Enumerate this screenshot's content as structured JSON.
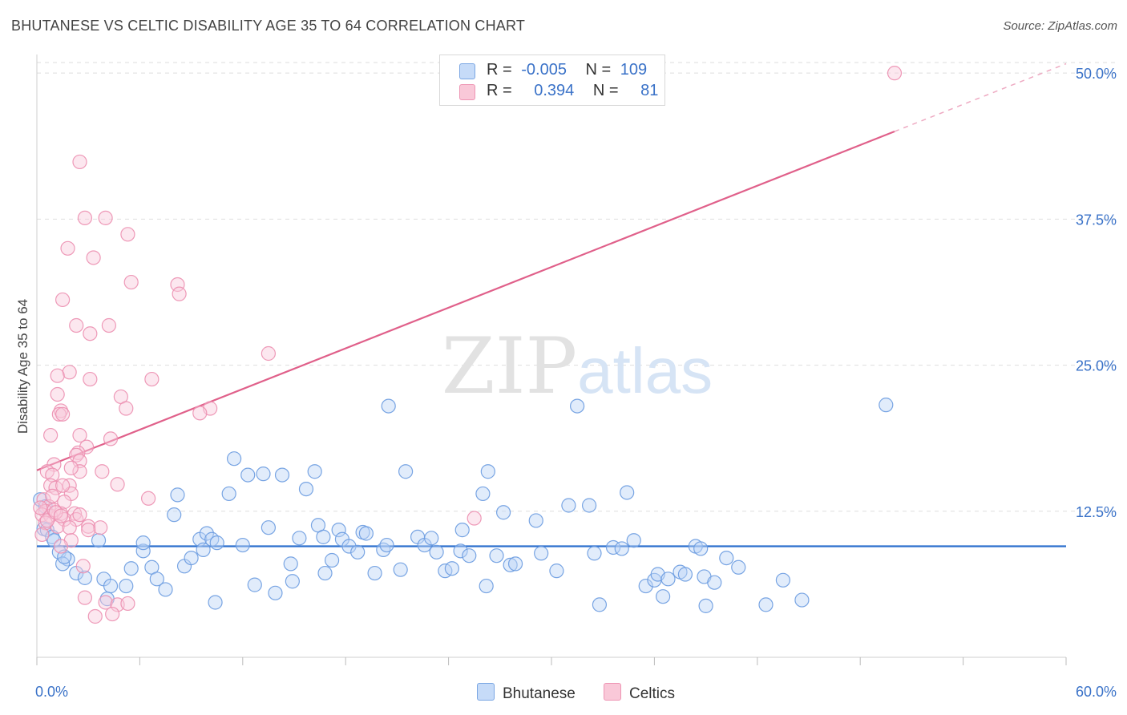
{
  "title": "BHUTANESE VS CELTIC DISABILITY AGE 35 TO 64 CORRELATION CHART",
  "source": "Source: ZipAtlas.com",
  "watermark": "ZIPatlas",
  "legend_top": [
    {
      "r_label": "R =",
      "r_value": "-0.005",
      "n_label": "N =",
      "n_value": "109",
      "color": "#aecbf4"
    },
    {
      "r_label": "R =",
      "r_value": "0.394",
      "n_label": "N =",
      "n_value": "81",
      "color": "#f7b9cf"
    }
  ],
  "legend_bottom": [
    {
      "label": "Bhutanese",
      "color": "#aecbf4"
    },
    {
      "label": "Celtics",
      "color": "#f7b9cf"
    }
  ],
  "colors": {
    "blue_point_stroke": "#6a9be0",
    "blue_point_fill": "#bcd4f6",
    "pink_point_stroke": "#ec8fb0",
    "pink_point_fill": "#f9cadb",
    "blue_line": "#2c6fce",
    "pink_line": "#e0608a",
    "grid": "#dedede",
    "axis_text": "#3a72c8"
  },
  "chart_data": {
    "type": "scatter",
    "title": "BHUTANESE VS CELTIC DISABILITY AGE 35 TO 64 CORRELATION CHART",
    "xlabel": "",
    "ylabel": "Disability Age 35 to 64",
    "xlim": [
      0,
      60
    ],
    "ylim": [
      0,
      52
    ],
    "x_tick_labels": [
      "0.0%",
      "60.0%"
    ],
    "y_ticks": [
      12.5,
      25.0,
      37.5,
      50.0
    ],
    "y_tick_labels": [
      "12.5%",
      "25.0%",
      "37.5%",
      "50.0%"
    ],
    "grid": true,
    "legend_position": "bottom",
    "series": [
      {
        "name": "Bhutanese",
        "points": [
          [
            0.2,
            13.5
          ],
          [
            0.4,
            11.0
          ],
          [
            0.6,
            10.9
          ],
          [
            0.9,
            10.3
          ],
          [
            1.3,
            9.0
          ],
          [
            1.8,
            8.4
          ],
          [
            1.5,
            8.0
          ],
          [
            2.3,
            7.2
          ],
          [
            2.8,
            6.8
          ],
          [
            3.6,
            10.0
          ],
          [
            3.9,
            6.7
          ],
          [
            4.3,
            6.1
          ],
          [
            5.2,
            6.1
          ],
          [
            5.5,
            7.6
          ],
          [
            4.1,
            5.0
          ],
          [
            6.2,
            9.1
          ],
          [
            6.2,
            9.8
          ],
          [
            6.7,
            7.7
          ],
          [
            7.0,
            6.7
          ],
          [
            7.5,
            5.8
          ],
          [
            8.2,
            13.9
          ],
          [
            8.0,
            12.2
          ],
          [
            8.6,
            7.8
          ],
          [
            9.0,
            8.5
          ],
          [
            9.5,
            10.1
          ],
          [
            9.7,
            9.2
          ],
          [
            9.9,
            10.6
          ],
          [
            10.2,
            10.1
          ],
          [
            10.5,
            9.8
          ],
          [
            10.4,
            4.7
          ],
          [
            11.2,
            14.0
          ],
          [
            11.5,
            17.0
          ],
          [
            12.0,
            9.6
          ],
          [
            12.3,
            15.6
          ],
          [
            12.7,
            6.2
          ],
          [
            13.2,
            15.7
          ],
          [
            13.5,
            11.1
          ],
          [
            13.9,
            5.5
          ],
          [
            14.3,
            15.6
          ],
          [
            14.8,
            8.0
          ],
          [
            14.9,
            6.5
          ],
          [
            15.3,
            10.2
          ],
          [
            15.7,
            14.4
          ],
          [
            16.2,
            15.9
          ],
          [
            16.4,
            11.3
          ],
          [
            16.7,
            10.3
          ],
          [
            16.8,
            7.2
          ],
          [
            17.2,
            8.3
          ],
          [
            17.6,
            10.9
          ],
          [
            17.8,
            10.1
          ],
          [
            18.2,
            9.5
          ],
          [
            18.7,
            9.0
          ],
          [
            19.0,
            10.7
          ],
          [
            19.2,
            10.6
          ],
          [
            19.7,
            7.2
          ],
          [
            20.2,
            9.2
          ],
          [
            20.4,
            9.6
          ],
          [
            20.5,
            21.5
          ],
          [
            21.2,
            7.5
          ],
          [
            21.5,
            15.9
          ],
          [
            22.2,
            10.3
          ],
          [
            22.6,
            9.6
          ],
          [
            23.0,
            10.2
          ],
          [
            23.3,
            9.0
          ],
          [
            23.8,
            7.4
          ],
          [
            24.2,
            7.6
          ],
          [
            24.8,
            10.9
          ],
          [
            24.7,
            9.1
          ],
          [
            25.2,
            8.7
          ],
          [
            26.2,
            6.1
          ],
          [
            26.3,
            15.9
          ],
          [
            26.0,
            14.0
          ],
          [
            26.8,
            8.7
          ],
          [
            27.2,
            12.4
          ],
          [
            27.6,
            7.9
          ],
          [
            27.9,
            8.0
          ],
          [
            29.1,
            11.7
          ],
          [
            29.4,
            8.9
          ],
          [
            30.3,
            7.4
          ],
          [
            31.0,
            13.0
          ],
          [
            31.5,
            21.5
          ],
          [
            32.2,
            13.0
          ],
          [
            32.5,
            8.9
          ],
          [
            32.8,
            4.5
          ],
          [
            33.6,
            9.4
          ],
          [
            34.1,
            9.3
          ],
          [
            34.4,
            14.1
          ],
          [
            34.8,
            10.0
          ],
          [
            35.5,
            6.1
          ],
          [
            36.0,
            6.6
          ],
          [
            36.2,
            7.1
          ],
          [
            36.8,
            6.7
          ],
          [
            36.5,
            5.2
          ],
          [
            37.5,
            7.3
          ],
          [
            37.8,
            7.1
          ],
          [
            38.4,
            9.5
          ],
          [
            38.7,
            9.3
          ],
          [
            38.9,
            6.9
          ],
          [
            39.0,
            4.4
          ],
          [
            39.5,
            6.4
          ],
          [
            40.2,
            8.5
          ],
          [
            40.9,
            7.7
          ],
          [
            42.5,
            4.5
          ],
          [
            43.5,
            6.6
          ],
          [
            44.6,
            4.9
          ],
          [
            49.5,
            21.6
          ],
          [
            0.5,
            12.9
          ],
          [
            1.0,
            10.0
          ],
          [
            1.6,
            8.6
          ]
        ]
      },
      {
        "name": "Celtics",
        "points": [
          [
            2.5,
            42.4
          ],
          [
            2.8,
            37.6
          ],
          [
            4.0,
            37.6
          ],
          [
            5.3,
            36.2
          ],
          [
            1.8,
            35.0
          ],
          [
            3.3,
            34.2
          ],
          [
            5.5,
            32.1
          ],
          [
            8.2,
            31.9
          ],
          [
            8.3,
            31.1
          ],
          [
            1.5,
            30.6
          ],
          [
            2.3,
            28.4
          ],
          [
            4.2,
            28.4
          ],
          [
            3.1,
            27.7
          ],
          [
            13.5,
            26.0
          ],
          [
            1.9,
            24.4
          ],
          [
            1.2,
            24.1
          ],
          [
            3.1,
            23.8
          ],
          [
            6.7,
            23.8
          ],
          [
            1.2,
            22.5
          ],
          [
            4.9,
            22.3
          ],
          [
            5.2,
            21.3
          ],
          [
            1.4,
            21.1
          ],
          [
            1.3,
            20.8
          ],
          [
            1.5,
            20.8
          ],
          [
            10.1,
            21.3
          ],
          [
            9.5,
            20.9
          ],
          [
            0.8,
            19.0
          ],
          [
            2.5,
            19.0
          ],
          [
            4.3,
            18.7
          ],
          [
            2.9,
            18.0
          ],
          [
            2.4,
            17.5
          ],
          [
            2.3,
            17.3
          ],
          [
            2.5,
            16.8
          ],
          [
            1.0,
            16.5
          ],
          [
            0.6,
            15.9
          ],
          [
            0.9,
            15.6
          ],
          [
            2.5,
            15.9
          ],
          [
            3.8,
            15.9
          ],
          [
            0.8,
            14.7
          ],
          [
            1.1,
            14.5
          ],
          [
            1.9,
            14.7
          ],
          [
            4.7,
            14.8
          ],
          [
            2.0,
            14.0
          ],
          [
            6.5,
            13.6
          ],
          [
            0.4,
            13.5
          ],
          [
            1.6,
            13.3
          ],
          [
            0.7,
            12.9
          ],
          [
            0.5,
            12.5
          ],
          [
            1.4,
            12.3
          ],
          [
            2.2,
            12.3
          ],
          [
            0.3,
            12.2
          ],
          [
            0.8,
            12.1
          ],
          [
            1.6,
            11.8
          ],
          [
            2.3,
            11.8
          ],
          [
            0.5,
            11.5
          ],
          [
            1.2,
            11.2
          ],
          [
            1.9,
            11.1
          ],
          [
            3.0,
            11.2
          ],
          [
            3.7,
            11.1
          ],
          [
            3.0,
            10.9
          ],
          [
            2.0,
            10.0
          ],
          [
            1.4,
            9.5
          ],
          [
            0.3,
            10.5
          ],
          [
            0.6,
            11.7
          ],
          [
            2.7,
            7.8
          ],
          [
            2.8,
            5.1
          ],
          [
            4.0,
            4.7
          ],
          [
            4.7,
            4.5
          ],
          [
            5.3,
            4.6
          ],
          [
            3.4,
            3.5
          ],
          [
            4.4,
            3.7
          ],
          [
            25.5,
            11.9
          ],
          [
            50.0,
            50.0
          ],
          [
            0.2,
            12.8
          ],
          [
            0.9,
            13.8
          ],
          [
            1.0,
            12.6
          ],
          [
            1.1,
            12.4
          ],
          [
            1.4,
            12.1
          ],
          [
            2.5,
            12.2
          ],
          [
            1.5,
            14.7
          ],
          [
            2.0,
            16.2
          ]
        ]
      }
    ],
    "trend_lines": [
      {
        "series": "Bhutanese",
        "x": [
          0,
          60
        ],
        "y": [
          9.5,
          9.5
        ]
      },
      {
        "series": "Celtics",
        "x": [
          0,
          50
        ],
        "y": [
          16.0,
          45.0
        ],
        "dashed_extension": {
          "x": [
            50,
            60
          ],
          "y": [
            45.0,
            50.8
          ]
        }
      }
    ]
  }
}
